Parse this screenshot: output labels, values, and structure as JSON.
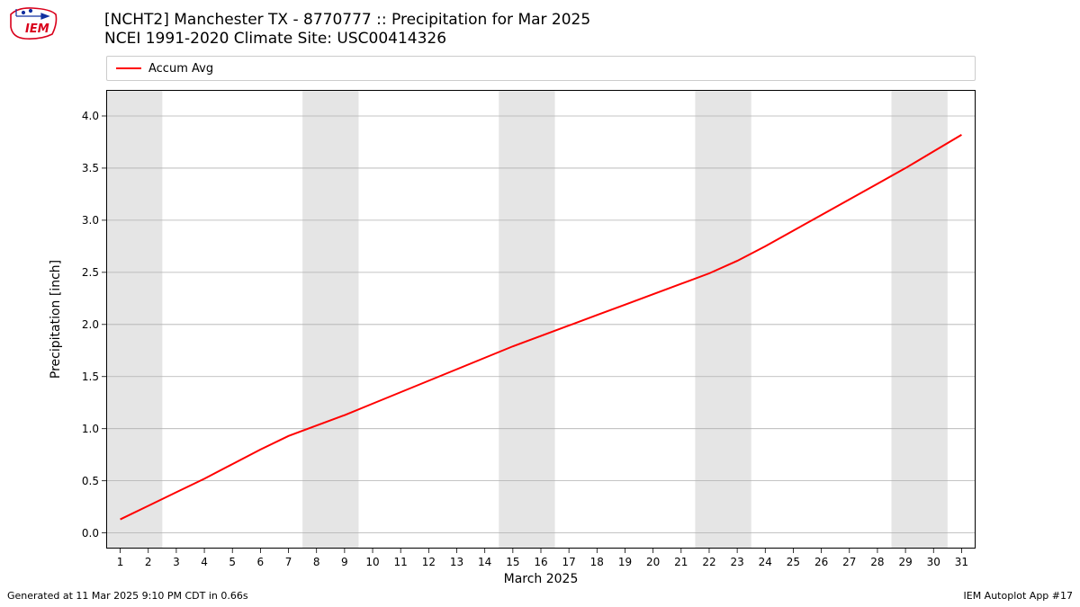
{
  "logo": {
    "text": "IEM",
    "color": "#d9001b"
  },
  "title_line1": "[NCHT2] Manchester  TX - 8770777 :: Precipitation for Mar 2025",
  "title_line2": "NCEI 1991-2020 Climate Site: USC00414326",
  "legend": {
    "label": "Accum Avg",
    "color": "#ff0000"
  },
  "ylabel": "Precipitation [inch]",
  "xlabel": "March 2025",
  "footer_left": "Generated at 11 Mar 2025 9:10 PM CDT in 0.66s",
  "footer_right": "IEM Autoplot App #17",
  "chart": {
    "type": "line",
    "background_color": "#ffffff",
    "weekend_band_color": "#e5e5e5",
    "grid_color": "#b0b0b0",
    "border_color": "#000000",
    "xlim": [
      0.5,
      31.5
    ],
    "ylim": [
      -0.15,
      4.25
    ],
    "xticks": [
      1,
      2,
      3,
      4,
      5,
      6,
      7,
      8,
      9,
      10,
      11,
      12,
      13,
      14,
      15,
      16,
      17,
      18,
      19,
      20,
      21,
      22,
      23,
      24,
      25,
      26,
      27,
      28,
      29,
      30,
      31
    ],
    "yticks": [
      0.0,
      0.5,
      1.0,
      1.5,
      2.0,
      2.5,
      3.0,
      3.5,
      4.0
    ],
    "weekend_bands": [
      [
        1,
        2
      ],
      [
        8,
        9
      ],
      [
        15,
        16
      ],
      [
        22,
        23
      ],
      [
        29,
        30
      ]
    ],
    "series": {
      "color": "#ff0000",
      "line_width": 2,
      "x": [
        1,
        2,
        3,
        4,
        5,
        6,
        7,
        8,
        9,
        10,
        11,
        12,
        13,
        14,
        15,
        16,
        17,
        18,
        19,
        20,
        21,
        22,
        23,
        24,
        25,
        26,
        27,
        28,
        29,
        30,
        31
      ],
      "y": [
        0.13,
        0.26,
        0.39,
        0.52,
        0.66,
        0.8,
        0.93,
        1.03,
        1.13,
        1.24,
        1.35,
        1.46,
        1.57,
        1.68,
        1.79,
        1.89,
        1.99,
        2.09,
        2.19,
        2.29,
        2.39,
        2.49,
        2.61,
        2.75,
        2.9,
        3.05,
        3.2,
        3.35,
        3.5,
        3.66,
        3.82
      ]
    },
    "tick_fontsize": 12,
    "label_fontsize": 14,
    "title_fontsize": 17
  }
}
